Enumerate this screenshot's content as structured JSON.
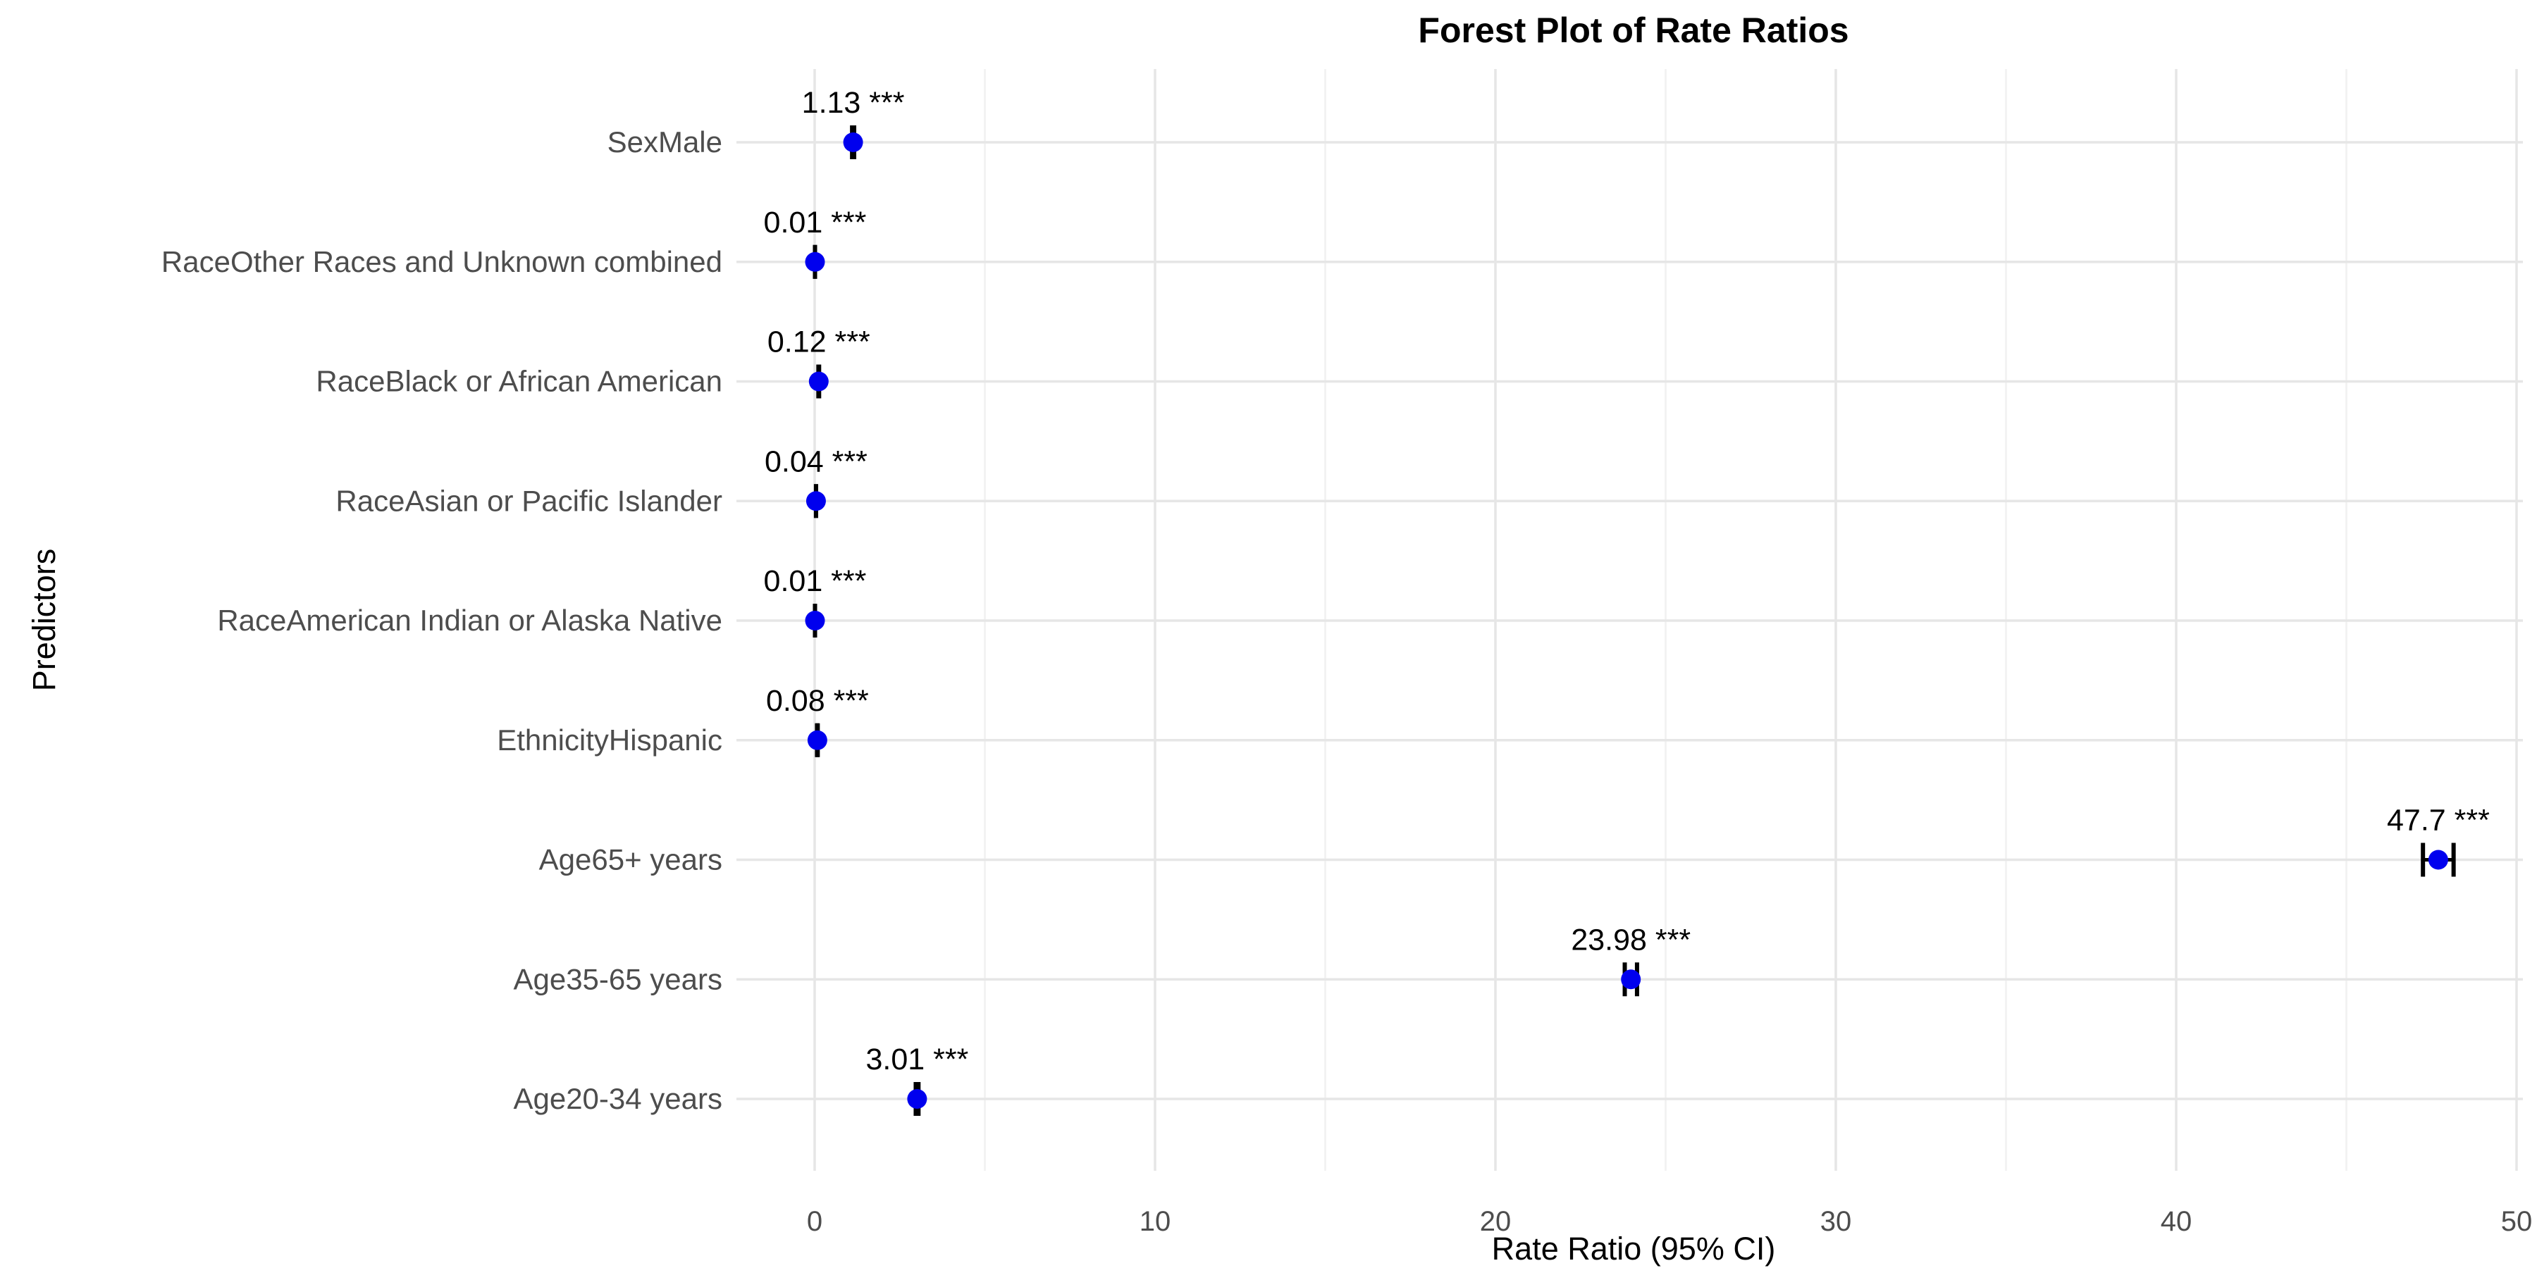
{
  "chart_data": {
    "type": "scatter",
    "subtype": "forest-plot",
    "title": "Forest Plot of Rate Ratios",
    "xlabel": "Rate Ratio (95% CI)",
    "ylabel": "Predictors",
    "xlim": [
      0,
      50
    ],
    "x_major_ticks": [
      0,
      10,
      20,
      30,
      40,
      50
    ],
    "x_minor_ticks": [
      5,
      15,
      25,
      35,
      45
    ],
    "grid": "light gray; vertical major+minor, horizontal at each category",
    "legend_position": "none",
    "categories": [
      "SexMale",
      "RaceOther Races and Unknown combined",
      "RaceBlack or African American",
      "RaceAsian or Pacific Islander",
      "RaceAmerican Indian or Alaska Native",
      "EthnicityHispanic",
      "Age65+ years",
      "Age35-65 years",
      "Age20-34 years"
    ],
    "points": [
      {
        "category": "SexMale",
        "value": 1.13,
        "ci_low": 1.1,
        "ci_high": 1.16,
        "label": "1.13 ***"
      },
      {
        "category": "RaceOther Races and Unknown combined",
        "value": 0.01,
        "ci_low": 0.01,
        "ci_high": 0.01,
        "label": "0.01 ***"
      },
      {
        "category": "RaceBlack or African American",
        "value": 0.12,
        "ci_low": 0.11,
        "ci_high": 0.13,
        "label": "0.12 ***"
      },
      {
        "category": "RaceAsian or Pacific Islander",
        "value": 0.04,
        "ci_low": 0.04,
        "ci_high": 0.04,
        "label": "0.04 ***"
      },
      {
        "category": "RaceAmerican Indian or Alaska Native",
        "value": 0.01,
        "ci_low": 0.01,
        "ci_high": 0.01,
        "label": "0.01 ***"
      },
      {
        "category": "EthnicityHispanic",
        "value": 0.08,
        "ci_low": 0.07,
        "ci_high": 0.09,
        "label": "0.08 ***"
      },
      {
        "category": "Age65+ years",
        "value": 47.7,
        "ci_low": 47.25,
        "ci_high": 48.15,
        "label": "47.7 ***"
      },
      {
        "category": "Age35-65 years",
        "value": 23.98,
        "ci_low": 23.8,
        "ci_high": 24.16,
        "label": "23.98 ***"
      },
      {
        "category": "Age20-34 years",
        "value": 3.01,
        "ci_low": 2.97,
        "ci_high": 3.05,
        "label": "3.01 ***"
      }
    ],
    "colors": {
      "point": "#0000EE",
      "error_bar": "#000000",
      "grid_major": "#E6E6E6",
      "grid_minor": "#F1F1F1",
      "axis_text": "#4D4D4D",
      "title_text": "#000000",
      "value_label_text": "#000000",
      "background": "#FFFFFF"
    }
  }
}
